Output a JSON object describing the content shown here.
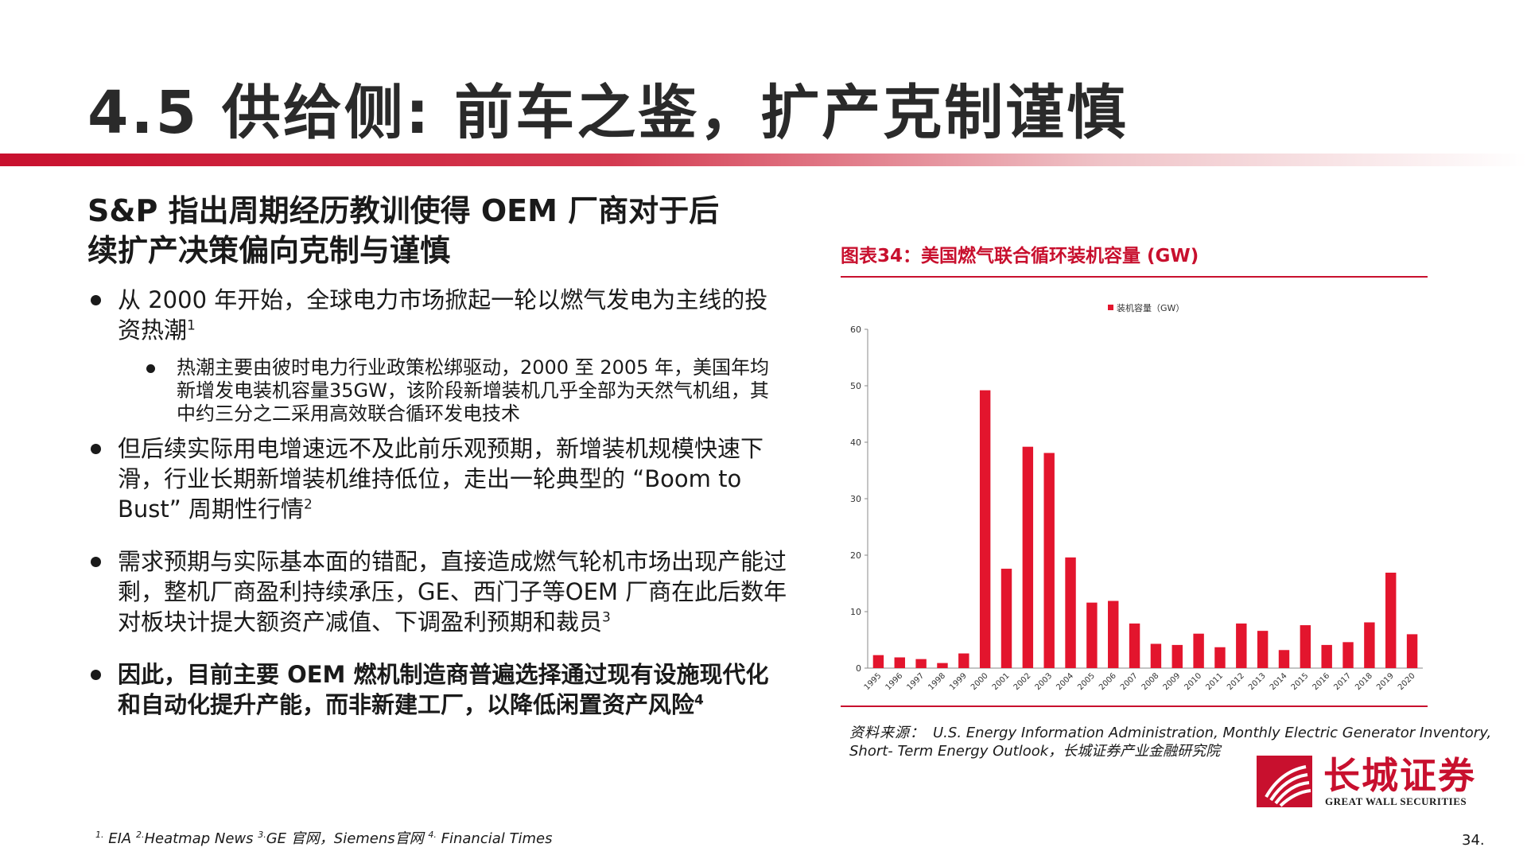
{
  "slide": {
    "title": "4.5 供给侧: 前车之鉴，扩产克制谨慎",
    "page_number": "34."
  },
  "left": {
    "headline_line1": "S&P 指出周期经历教训使得 OEM 厂商对于后",
    "headline_line2": "续扩产决策偏向克制与谨慎",
    "bullets": [
      {
        "text": "从 2000 年开始，全球电力市场掀起一轮以燃气发电为主线的投资热潮",
        "sup": "1"
      },
      {
        "text": "但后续实际用电增速远不及此前乐观预期，新增装机规模快速下滑，行业长期新增装机维持低位，走出一轮典型的 “Boom to Bust” 周期性行情",
        "sup": "2"
      },
      {
        "text": "需求预期与实际基本面的错配，直接造成燃气轮机市场出现产能过剩，整机厂商盈利持续承压，GE、西门子等OEM 厂商在此后数年对板块计提大额资产减值、下调盈利预期和裁员",
        "sup": "3"
      },
      {
        "text": "因此，目前主要 OEM 燃机制造商普遍选择通过现有设施现代化和自动化提升产能，而非新建工厂，以降低闲置资产风险",
        "sup": "4"
      }
    ],
    "subbullets": [
      {
        "text": "热潮主要由彼时电力行业政策松绑驱动，2000 至 2005 年，美国年均新增发电装机容量35GW，该阶段新增装机几乎全部为天然气机组，其中约三分之二采用高效联合循环发电技术"
      }
    ]
  },
  "chart_title": "图表34：美国燃气联合循环装机容量 (GW)",
  "chart_data": {
    "type": "bar",
    "title": "图表34：美国燃气联合循环装机容量 (GW)",
    "legend": "装机容量（GW）",
    "legend_position": "top-center",
    "categories": [
      "1995",
      "1996",
      "1997",
      "1998",
      "1999",
      "2000",
      "2001",
      "2002",
      "2003",
      "2004",
      "2005",
      "2006",
      "2007",
      "2008",
      "2009",
      "2010",
      "2011",
      "2012",
      "2013",
      "2014",
      "2015",
      "2016",
      "2017",
      "2018",
      "2019",
      "2020"
    ],
    "values": [
      2.3,
      1.9,
      1.6,
      0.9,
      2.6,
      49.2,
      17.6,
      39.2,
      38.1,
      19.6,
      11.6,
      11.9,
      7.9,
      4.3,
      4.1,
      6.1,
      3.7,
      7.9,
      6.6,
      3.2,
      7.6,
      4.1,
      4.6,
      8.1,
      16.9,
      6.0
    ],
    "ylim": [
      0,
      60
    ],
    "yticks": [
      0,
      10,
      20,
      30,
      40,
      50,
      60
    ],
    "xlabel": "",
    "ylabel": "",
    "grid": false,
    "bar_color": "#e3152d"
  },
  "source": {
    "label": "资料来源：",
    "line1": "U.S. Energy Information Administration, Monthly Electric Generator Inventory,",
    "line2": "Short- Term Energy Outlook，长城证券产业金融研究院"
  },
  "logo": {
    "cn": "长城证券",
    "en": "GREAT WALL SECURITIES",
    "icon": "great-wall-logo-icon",
    "color": "#c8102e"
  },
  "footnotes": [
    {
      "sup": "1.",
      "text": " EIA "
    },
    {
      "sup": "2.",
      "text": "Heatmap News "
    },
    {
      "sup": "3.",
      "text": "GE 官网，Siemens官网 "
    },
    {
      "sup": "4.",
      "text": " Financial Times"
    }
  ],
  "colors": {
    "accent": "#c8102e",
    "bar": "#e3152d"
  }
}
